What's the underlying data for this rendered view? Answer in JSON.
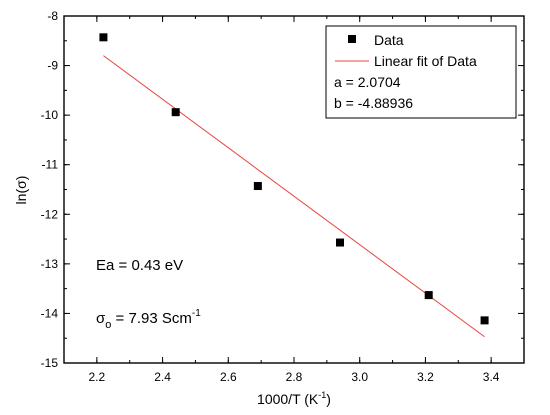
{
  "chart_data": {
    "type": "scatter",
    "xlabel": "1000/T (K",
    "xlabel_sup": "-1",
    "xlabel_tail": ")",
    "ylabel": "ln(σ)",
    "xlim": [
      2.1,
      3.5
    ],
    "ylim": [
      -15,
      -8
    ],
    "xticks": [
      "2.2",
      "2.4",
      "2.6",
      "2.8",
      "3.0",
      "3.2",
      "3.4"
    ],
    "yticks": [
      "-8",
      "-9",
      "-10",
      "-11",
      "-12",
      "-13",
      "-14",
      "-15"
    ],
    "series": [
      {
        "name": "Data",
        "marker": "square",
        "color": "#000000",
        "x": [
          2.22,
          2.44,
          2.69,
          2.94,
          3.21,
          3.38
        ],
        "y": [
          -8.43,
          -9.94,
          -11.43,
          -12.57,
          -13.63,
          -14.14
        ]
      }
    ],
    "fit": {
      "name": "Linear fit of Data",
      "color": "#e8453c",
      "x": [
        2.22,
        3.38
      ],
      "y": [
        -8.8,
        -14.47
      ]
    },
    "legend": {
      "placement": "top-right",
      "data_label": "Data",
      "fit_label": "Linear fit of Data",
      "a_text": "a = 2.0704",
      "b_text": "b = -4.88936"
    },
    "annotations": {
      "ea_text": "Ea = 0.43 eV",
      "sigma_main": "σ",
      "sigma_sub": "o",
      "sigma_value": " = 7.93 Scm",
      "sigma_sup": "-1"
    }
  }
}
